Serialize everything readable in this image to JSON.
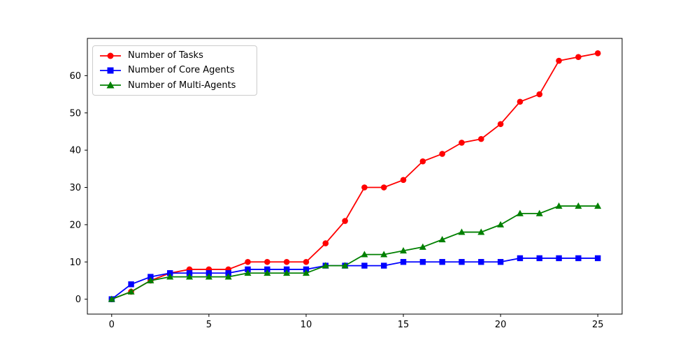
{
  "figure": {
    "background": "#ffffff",
    "axes_background": "#ffffff",
    "spine_color": "#000000"
  },
  "chart_data": {
    "type": "line",
    "title": "",
    "xlabel": "",
    "ylabel": "",
    "grid": false,
    "legend_position": "upper left",
    "xlim": [
      -1.25,
      26.25
    ],
    "ylim": [
      -4,
      70
    ],
    "xticks": [
      0,
      5,
      10,
      15,
      20,
      25
    ],
    "yticks": [
      0,
      10,
      20,
      30,
      40,
      50,
      60
    ],
    "x": [
      0,
      1,
      2,
      3,
      4,
      5,
      6,
      7,
      8,
      9,
      10,
      11,
      12,
      13,
      14,
      15,
      16,
      17,
      18,
      19,
      20,
      21,
      22,
      23,
      24,
      25
    ],
    "series": [
      {
        "name": "Number of Tasks",
        "color": "#ff0000",
        "marker": "circle",
        "values": [
          0,
          2,
          5,
          7,
          8,
          8,
          8,
          10,
          10,
          10,
          10,
          15,
          21,
          30,
          30,
          32,
          37,
          39,
          42,
          43,
          47,
          53,
          55,
          64,
          65,
          66
        ]
      },
      {
        "name": "Number of Core Agents",
        "color": "#0000ff",
        "marker": "square",
        "values": [
          0,
          4,
          6,
          7,
          7,
          7,
          7,
          8,
          8,
          8,
          8,
          9,
          9,
          9,
          9,
          10,
          10,
          10,
          10,
          10,
          10,
          11,
          11,
          11,
          11,
          11
        ]
      },
      {
        "name": "Number of Multi-Agents",
        "color": "#008000",
        "marker": "triangle",
        "values": [
          0,
          2,
          5,
          6,
          6,
          6,
          6,
          7,
          7,
          7,
          7,
          9,
          9,
          12,
          12,
          13,
          14,
          16,
          18,
          18,
          20,
          23,
          23,
          25,
          25,
          25
        ]
      }
    ]
  }
}
